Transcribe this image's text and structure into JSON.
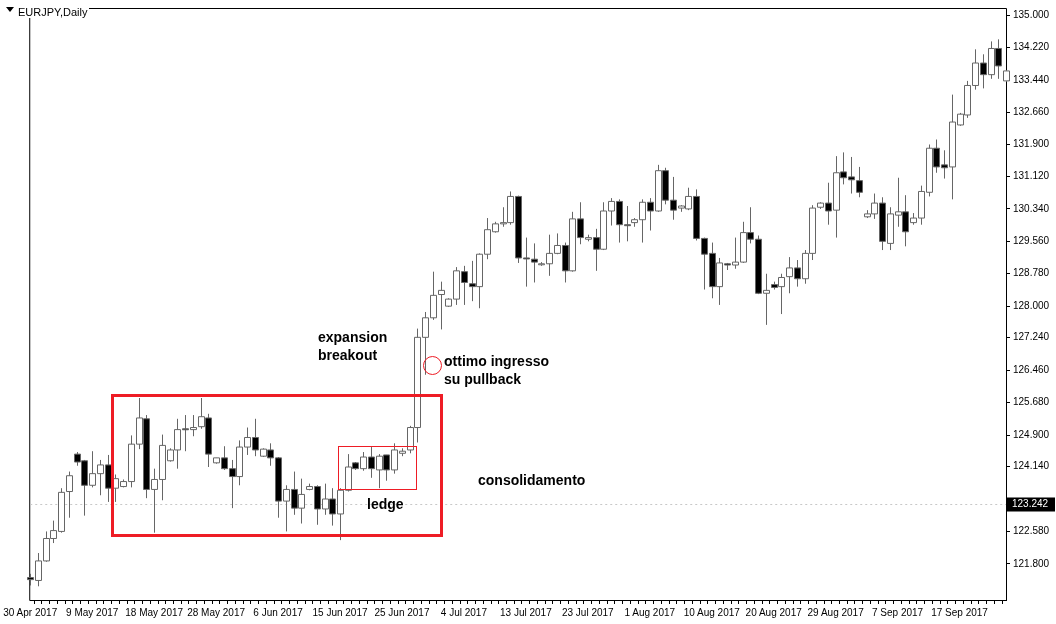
{
  "chart_data": {
    "type": "candlestick",
    "title": "EURJPY,Daily",
    "categories": [
      "30 Apr 2017",
      null,
      null,
      null,
      null,
      null,
      null,
      null,
      "9 May 2017",
      null,
      null,
      null,
      null,
      null,
      null,
      null,
      "18 May 2017",
      null,
      null,
      null,
      null,
      null,
      null,
      null,
      "28 May 2017",
      null,
      null,
      null,
      null,
      null,
      null,
      null,
      "6 Jun 2017",
      null,
      null,
      null,
      null,
      null,
      null,
      null,
      "15 Jun 2017",
      null,
      null,
      null,
      null,
      null,
      null,
      null,
      "25 Jun 2017",
      null,
      null,
      null,
      null,
      null,
      null,
      null,
      "4 Jul 2017",
      null,
      null,
      null,
      null,
      null,
      null,
      null,
      "13 Jul 2017",
      null,
      null,
      null,
      null,
      null,
      null,
      null,
      "23 Jul 2017",
      null,
      null,
      null,
      null,
      null,
      null,
      null,
      "1 Aug 2017",
      null,
      null,
      null,
      null,
      null,
      null,
      null,
      "10 Aug 2017",
      null,
      null,
      null,
      null,
      null,
      null,
      null,
      "20 Aug 2017",
      null,
      null,
      null,
      null,
      null,
      null,
      null,
      "29 Aug 2017",
      null,
      null,
      null,
      null,
      null,
      null,
      null,
      "7 Sep 2017",
      null,
      null,
      null,
      null,
      null,
      null,
      null,
      "17 Sep 2017",
      null,
      null,
      null,
      null,
      null,
      null
    ],
    "ohlc": [
      [
        121.47,
        121.56,
        121.28,
        121.42
      ],
      [
        121.4,
        122.06,
        121.26,
        121.87
      ],
      [
        121.87,
        122.58,
        121.85,
        122.41
      ],
      [
        122.41,
        122.84,
        122.3,
        122.6
      ],
      [
        122.58,
        123.62,
        122.55,
        123.52
      ],
      [
        123.54,
        124.02,
        122.91,
        123.92
      ],
      [
        124.44,
        124.49,
        124.16,
        124.25
      ],
      [
        124.28,
        124.3,
        122.96,
        123.69
      ],
      [
        123.69,
        124.51,
        123.64,
        123.97
      ],
      [
        123.97,
        124.3,
        123.45,
        124.18
      ],
      [
        124.18,
        124.42,
        123.29,
        123.62
      ],
      [
        123.62,
        123.95,
        123.29,
        123.85
      ],
      [
        123.66,
        123.83,
        123.64,
        123.78
      ],
      [
        123.78,
        124.89,
        123.64,
        124.68
      ],
      [
        124.68,
        125.79,
        124.56,
        125.31
      ],
      [
        125.29,
        125.38,
        123.38,
        123.59
      ],
      [
        123.59,
        124.09,
        122.55,
        123.83
      ],
      [
        123.83,
        124.91,
        123.33,
        124.65
      ],
      [
        124.28,
        124.58,
        124.26,
        124.54
      ],
      [
        124.54,
        125.29,
        124.09,
        125.03
      ],
      [
        125.05,
        125.38,
        124.51,
        125.03
      ],
      [
        125.03,
        125.38,
        124.87,
        125.08
      ],
      [
        125.1,
        125.79,
        125.05,
        125.34
      ],
      [
        125.31,
        125.41,
        124.13,
        124.44
      ],
      [
        124.23,
        124.35,
        124.21,
        124.35
      ],
      [
        124.35,
        124.63,
        124.06,
        124.09
      ],
      [
        124.09,
        124.3,
        123.14,
        123.9
      ],
      [
        123.9,
        124.77,
        123.69,
        124.61
      ],
      [
        124.61,
        125.08,
        124.42,
        124.84
      ],
      [
        124.84,
        125.29,
        124.39,
        124.54
      ],
      [
        124.39,
        124.58,
        124.37,
        124.56
      ],
      [
        124.54,
        124.7,
        124.16,
        124.35
      ],
      [
        124.35,
        124.37,
        122.91,
        123.31
      ],
      [
        123.31,
        123.69,
        122.58,
        123.59
      ],
      [
        123.59,
        124.02,
        122.98,
        123.14
      ],
      [
        123.14,
        123.85,
        122.77,
        123.47
      ],
      [
        123.59,
        123.73,
        123.57,
        123.66
      ],
      [
        123.66,
        123.69,
        122.74,
        123.12
      ],
      [
        123.12,
        123.73,
        122.98,
        123.36
      ],
      [
        123.36,
        123.62,
        122.72,
        123.0
      ],
      [
        123.0,
        123.62,
        122.37,
        123.57
      ],
      [
        123.57,
        124.44,
        123.54,
        124.13
      ],
      [
        124.23,
        124.25,
        124.06,
        124.09
      ],
      [
        124.09,
        124.49,
        124.04,
        124.37
      ],
      [
        124.37,
        124.61,
        123.87,
        124.09
      ],
      [
        124.06,
        124.44,
        123.62,
        124.39
      ],
      [
        124.42,
        124.42,
        123.8,
        124.06
      ],
      [
        124.06,
        124.7,
        123.97,
        124.54
      ],
      [
        124.46,
        124.58,
        124.39,
        124.51
      ],
      [
        124.54,
        125.12,
        124.46,
        125.08
      ],
      [
        125.08,
        127.46,
        124.72,
        127.25
      ],
      [
        127.25,
        127.86,
        126.35,
        127.72
      ],
      [
        127.72,
        128.83,
        127.67,
        128.26
      ],
      [
        128.28,
        128.59,
        127.44,
        128.38
      ],
      [
        128.0,
        128.19,
        127.98,
        128.17
      ],
      [
        128.17,
        128.94,
        128.03,
        128.85
      ],
      [
        128.83,
        128.97,
        128.03,
        128.57
      ],
      [
        128.54,
        129.09,
        128.12,
        128.47
      ],
      [
        128.47,
        129.27,
        127.95,
        129.25
      ],
      [
        129.25,
        130.12,
        129.13,
        129.84
      ],
      [
        129.79,
        130.03,
        129.77,
        129.98
      ],
      [
        129.98,
        130.38,
        129.91,
        130.01
      ],
      [
        130.01,
        130.76,
        129.96,
        130.64
      ],
      [
        130.64,
        130.66,
        129.04,
        129.16
      ],
      [
        129.16,
        129.65,
        128.47,
        129.14
      ],
      [
        129.13,
        129.51,
        128.57,
        129.06
      ],
      [
        129.02,
        129.06,
        128.97,
        129.02
      ],
      [
        129.02,
        129.72,
        128.73,
        129.27
      ],
      [
        129.27,
        129.75,
        129.25,
        129.46
      ],
      [
        129.46,
        129.53,
        128.57,
        128.85
      ],
      [
        128.85,
        130.27,
        128.83,
        130.1
      ],
      [
        130.1,
        130.5,
        129.49,
        129.65
      ],
      [
        129.61,
        129.72,
        129.56,
        129.65
      ],
      [
        129.65,
        129.86,
        128.85,
        129.37
      ],
      [
        129.37,
        130.5,
        129.35,
        130.29
      ],
      [
        130.29,
        130.6,
        129.94,
        130.52
      ],
      [
        130.52,
        130.57,
        129.53,
        129.96
      ],
      [
        129.96,
        130.41,
        129.56,
        129.94
      ],
      [
        130.01,
        130.12,
        129.91,
        130.08
      ],
      [
        130.08,
        130.57,
        129.53,
        130.5
      ],
      [
        130.5,
        130.6,
        129.82,
        130.29
      ],
      [
        130.29,
        131.4,
        130.27,
        131.26
      ],
      [
        131.26,
        131.33,
        130.45,
        130.55
      ],
      [
        130.55,
        131.11,
        130.08,
        130.31
      ],
      [
        130.36,
        130.43,
        130.27,
        130.41
      ],
      [
        130.34,
        130.85,
        130.31,
        130.64
      ],
      [
        130.64,
        130.81,
        129.58,
        129.63
      ],
      [
        129.63,
        129.65,
        128.4,
        129.25
      ],
      [
        129.27,
        129.53,
        128.19,
        128.47
      ],
      [
        128.47,
        129.16,
        128.03,
        129.04
      ],
      [
        129.02,
        129.04,
        128.87,
        128.99
      ],
      [
        128.99,
        129.65,
        128.9,
        129.06
      ],
      [
        129.06,
        130.03,
        129.04,
        129.77
      ],
      [
        129.77,
        130.38,
        129.51,
        129.61
      ],
      [
        129.61,
        129.7,
        128.29,
        128.31
      ],
      [
        128.31,
        128.78,
        127.55,
        128.38
      ],
      [
        128.52,
        128.59,
        128.4,
        128.45
      ],
      [
        128.47,
        128.78,
        127.81,
        128.69
      ],
      [
        128.71,
        129.18,
        128.31,
        128.92
      ],
      [
        128.92,
        129.11,
        128.47,
        128.66
      ],
      [
        128.66,
        129.35,
        128.54,
        129.27
      ],
      [
        129.27,
        130.43,
        129.11,
        130.36
      ],
      [
        130.38,
        130.5,
        130.34,
        130.48
      ],
      [
        130.48,
        130.97,
        129.96,
        130.29
      ],
      [
        130.31,
        131.61,
        129.65,
        131.21
      ],
      [
        131.23,
        131.7,
        130.93,
        131.09
      ],
      [
        131.11,
        131.59,
        130.71,
        131.04
      ],
      [
        131.02,
        131.35,
        130.62,
        130.74
      ],
      [
        130.15,
        130.31,
        130.12,
        130.22
      ],
      [
        130.22,
        130.71,
        130.1,
        130.48
      ],
      [
        130.48,
        130.62,
        129.35,
        129.56
      ],
      [
        129.51,
        130.38,
        129.35,
        130.22
      ],
      [
        130.19,
        131.09,
        129.91,
        130.27
      ],
      [
        130.27,
        130.67,
        129.44,
        129.79
      ],
      [
        130.01,
        130.24,
        129.96,
        130.12
      ],
      [
        130.12,
        130.9,
        129.96,
        130.76
      ],
      [
        130.74,
        131.89,
        130.64,
        131.8
      ],
      [
        131.8,
        132.01,
        131.21,
        131.35
      ],
      [
        131.4,
        131.75,
        131.07,
        131.33
      ],
      [
        131.35,
        133.09,
        130.57,
        132.43
      ],
      [
        132.36,
        132.65,
        132.34,
        132.62
      ],
      [
        132.6,
        133.42,
        132.53,
        133.31
      ],
      [
        133.31,
        134.18,
        133.21,
        133.85
      ],
      [
        133.85,
        134.06,
        133.24,
        133.57
      ],
      [
        133.57,
        134.37,
        133.47,
        134.2
      ],
      [
        134.2,
        134.42,
        133.47,
        133.78
      ],
      [
        133.42,
        133.68,
        133.4,
        133.66
      ]
    ],
    "ylim": [
      120.93,
      135.15
    ],
    "yticks": [
      {
        "value": 121.8,
        "label": "121.800"
      },
      {
        "value": 122.58,
        "label": "122.580"
      },
      {
        "value": 124.14,
        "label": "124.140"
      },
      {
        "value": 124.9,
        "label": "124.900"
      },
      {
        "value": 125.68,
        "label": "125.680"
      },
      {
        "value": 126.46,
        "label": "126.460"
      },
      {
        "value": 127.24,
        "label": "127.240"
      },
      {
        "value": 128,
        "label": "128.000"
      },
      {
        "value": 128.78,
        "label": "128.780"
      },
      {
        "value": 129.56,
        "label": "129.560"
      },
      {
        "value": 130.34,
        "label": "130.340"
      },
      {
        "value": 131.12,
        "label": "131.120"
      },
      {
        "value": 131.9,
        "label": "131.900"
      },
      {
        "value": 132.66,
        "label": "132.660"
      },
      {
        "value": 133.44,
        "label": "133.440"
      },
      {
        "value": 134.22,
        "label": "134.220"
      },
      {
        "value": 135,
        "label": "135.000"
      }
    ],
    "ref_lines": [
      {
        "axis": "y",
        "value": 123.242,
        "label": "123.242"
      }
    ],
    "annotations": [
      "expansion\nbreakout",
      "ottimo ingresso\nsu pullback",
      "consolidamento",
      "ledge"
    ]
  }
}
